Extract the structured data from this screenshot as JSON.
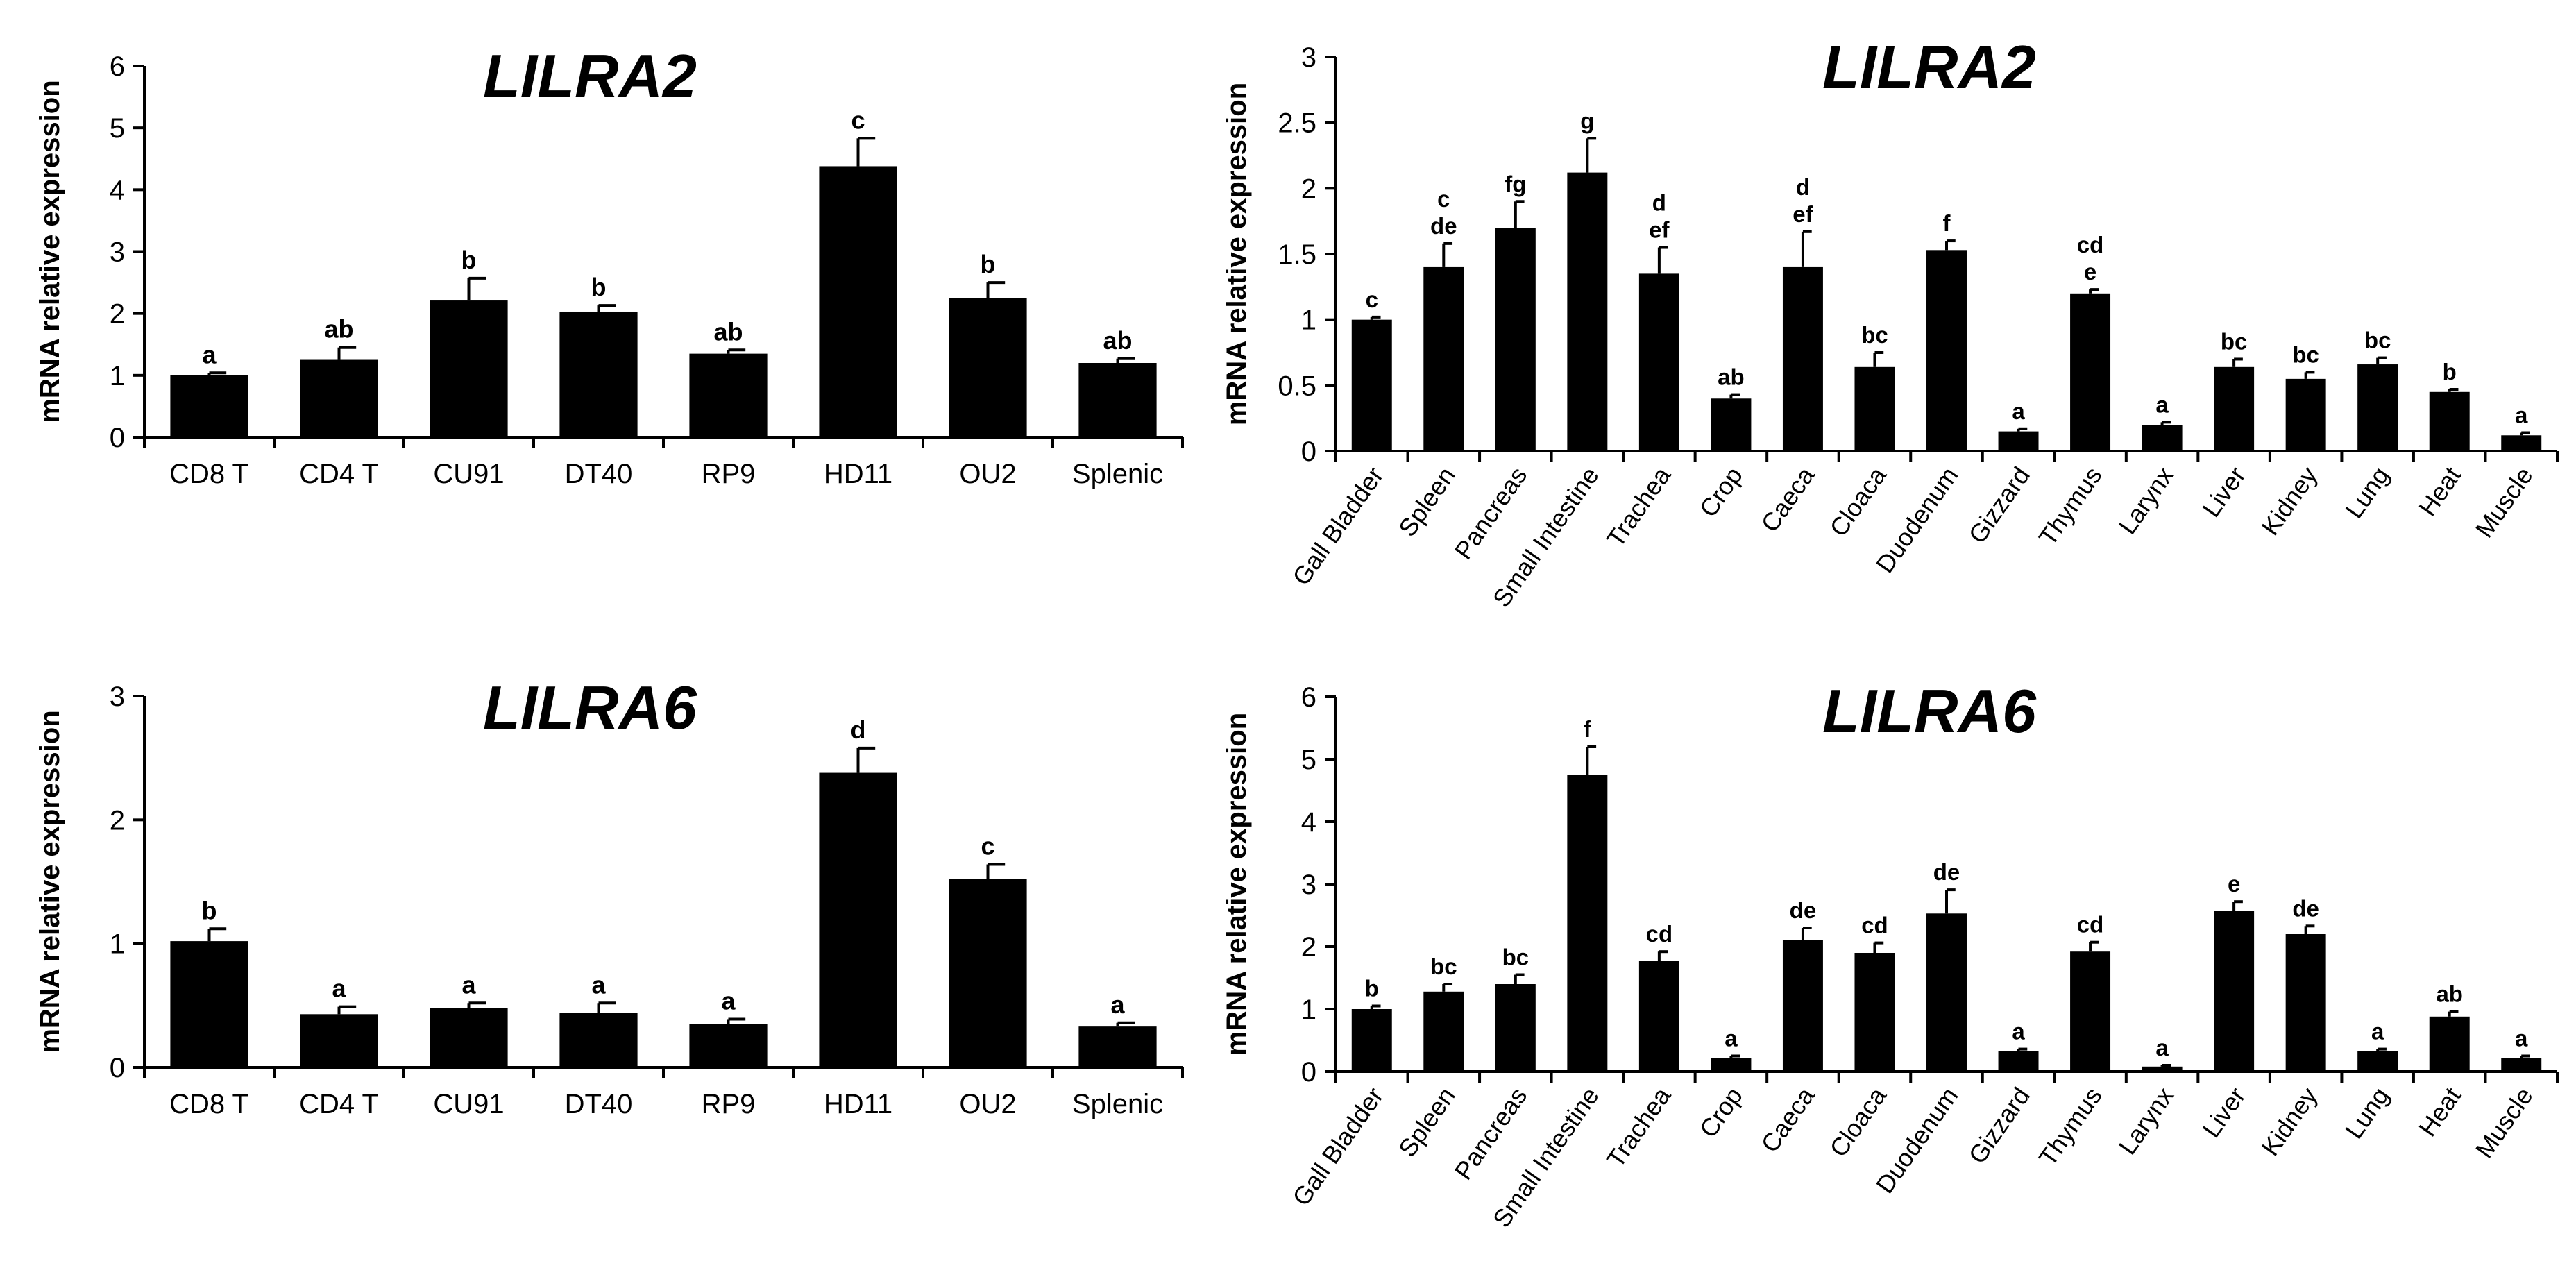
{
  "chart_data": [
    {
      "type": "bar",
      "title": "LILRA2",
      "xlabel": "",
      "ylabel": "mRNA relative expression",
      "ylim": [
        0,
        6
      ],
      "yticks": [
        "0",
        "1",
        "2",
        "3",
        "4",
        "5",
        "6"
      ],
      "categories": [
        "CD8 T",
        "CD4 T",
        "CU91",
        "DT40",
        "RP9",
        "HD11",
        "OU2",
        "Splenic"
      ],
      "values": [
        1.0,
        1.25,
        2.22,
        2.03,
        1.35,
        4.38,
        2.25,
        1.2
      ],
      "errors": [
        0.04,
        0.2,
        0.35,
        0.1,
        0.06,
        0.45,
        0.25,
        0.07
      ],
      "labels": [
        "a",
        "ab",
        "b",
        "b",
        "ab",
        "c",
        "b",
        "ab"
      ],
      "grid": false
    },
    {
      "type": "bar",
      "title": "LILRA2",
      "xlabel": "",
      "ylabel": "mRNA relative expression",
      "ylim": [
        0,
        3
      ],
      "yticks": [
        "0",
        "0.5",
        "1",
        "1.5",
        "2",
        "2.5",
        "3"
      ],
      "categories": [
        "Gall Bladder",
        "Spleen",
        "Pancreas",
        "Small Intestine",
        "Trachea",
        "Crop",
        "Caeca",
        "Cloaca",
        "Duodenum",
        "Gizzard",
        "Thymus",
        "Larynx",
        "Liver",
        "Kidney",
        "Lung",
        "Heat",
        "Muscle"
      ],
      "values": [
        1.0,
        1.4,
        1.7,
        2.12,
        1.35,
        0.4,
        1.4,
        0.64,
        1.53,
        0.15,
        1.2,
        0.2,
        0.64,
        0.55,
        0.66,
        0.45,
        0.12
      ],
      "errors": [
        0.02,
        0.18,
        0.2,
        0.26,
        0.2,
        0.03,
        0.27,
        0.11,
        0.07,
        0.02,
        0.03,
        0.02,
        0.06,
        0.05,
        0.05,
        0.02,
        0.02
      ],
      "labels": [
        [
          "c"
        ],
        [
          "c",
          "de"
        ],
        [
          "fg"
        ],
        [
          "g"
        ],
        [
          "d",
          "ef"
        ],
        [
          "ab"
        ],
        [
          "d",
          "ef"
        ],
        [
          "bc"
        ],
        [
          "f"
        ],
        [
          "a"
        ],
        [
          "cd",
          "e"
        ],
        [
          "a"
        ],
        [
          "bc"
        ],
        [
          "bc"
        ],
        [
          "bc"
        ],
        [
          "b"
        ],
        [
          "a"
        ]
      ],
      "grid": false
    },
    {
      "type": "bar",
      "title": "LILRA6",
      "xlabel": "",
      "ylabel": "mRNA relative expression",
      "ylim": [
        0,
        3
      ],
      "yticks": [
        "0",
        "1",
        "2",
        "3"
      ],
      "categories": [
        "CD8 T",
        "CD4 T",
        "CU91",
        "DT40",
        "RP9",
        "HD11",
        "OU2",
        "Splenic"
      ],
      "values": [
        1.02,
        0.43,
        0.48,
        0.44,
        0.35,
        2.38,
        1.52,
        0.33
      ],
      "errors": [
        0.1,
        0.06,
        0.04,
        0.08,
        0.04,
        0.2,
        0.12,
        0.03
      ],
      "labels": [
        "b",
        "a",
        "a",
        "a",
        "a",
        "d",
        "c",
        "a"
      ],
      "grid": false
    },
    {
      "type": "bar",
      "title": "LILRA6",
      "xlabel": "",
      "ylabel": "mRNA relative expression",
      "ylim": [
        0,
        6
      ],
      "yticks": [
        "0",
        "1",
        "2",
        "3",
        "4",
        "5",
        "6"
      ],
      "categories": [
        "Gall Bladder",
        "Spleen",
        "Pancreas",
        "Small Intestine",
        "Trachea",
        "Crop",
        "Caeca",
        "Cloaca",
        "Duodenum",
        "Gizzard",
        "Thymus",
        "Larynx",
        "Liver",
        "Kidney",
        "Lung",
        "Heat",
        "Muscle"
      ],
      "values": [
        1.0,
        1.28,
        1.4,
        4.75,
        1.77,
        0.22,
        2.1,
        1.9,
        2.53,
        0.33,
        1.92,
        0.08,
        2.57,
        2.2,
        0.33,
        0.88,
        0.22
      ],
      "errors": [
        0.05,
        0.12,
        0.15,
        0.45,
        0.15,
        0.03,
        0.2,
        0.16,
        0.38,
        0.03,
        0.15,
        0.02,
        0.15,
        0.13,
        0.03,
        0.08,
        0.03
      ],
      "labels": [
        [
          "b"
        ],
        [
          "bc"
        ],
        [
          "bc"
        ],
        [
          "f"
        ],
        [
          "cd"
        ],
        [
          "a"
        ],
        [
          "de"
        ],
        [
          "cd"
        ],
        [
          "de"
        ],
        [
          "a"
        ],
        [
          "cd"
        ],
        [
          "a"
        ],
        [
          "e"
        ],
        [
          "de"
        ],
        [
          "a"
        ],
        [
          "ab"
        ],
        [
          "a"
        ]
      ],
      "grid": false
    }
  ]
}
